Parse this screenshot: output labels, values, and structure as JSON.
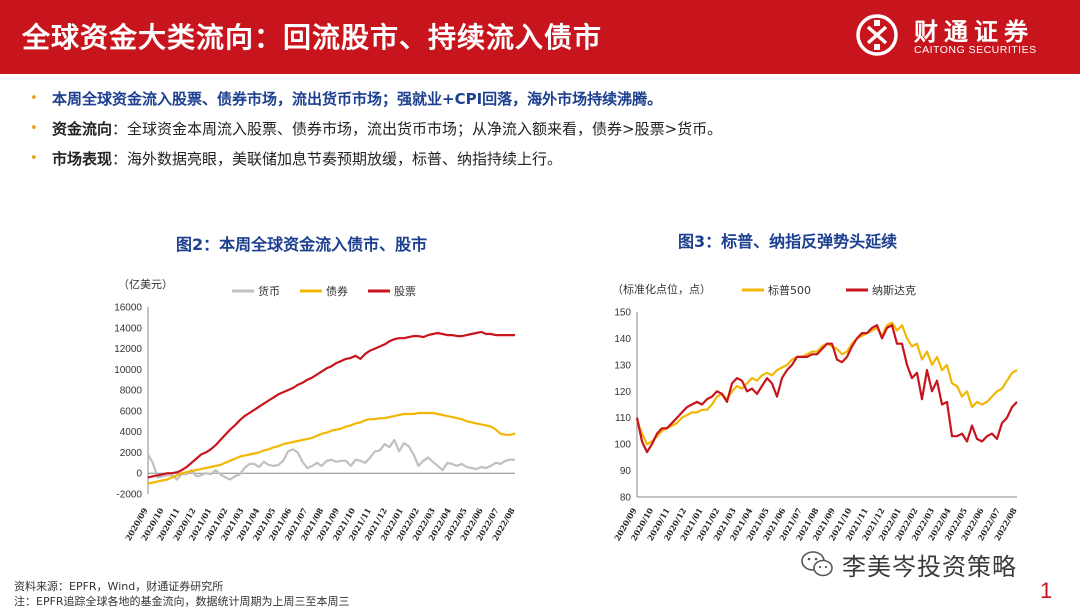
{
  "header": {
    "title": "全球资金大类流向：回流股市、持续流入债市",
    "logo_cn": "财通证券",
    "logo_en": "CAITONG SECURITIES",
    "brand_color": "#c8151d"
  },
  "bullets": [
    {
      "lead": "",
      "text": "本周全球资金流入股票、债券市场，流出货币市场；强就业+CPI回落，海外市场持续沸腾。"
    },
    {
      "lead": "资金流向",
      "text": "：全球资金本周流入股票、债券市场，流出货币市场；从净流入额来看，债券>股票>货币。"
    },
    {
      "lead": "市场表现",
      "text": "：海外数据亮眼，美联储加息节奏预期放缓，标普、纳指持续上行。"
    }
  ],
  "chart_data": [
    {
      "type": "line",
      "title": "图2：本周全球资金流入债市、股市",
      "unit_label": "（亿美元）",
      "ylim": [
        -2000,
        16000
      ],
      "yticks": [
        -2000,
        0,
        2000,
        4000,
        6000,
        8000,
        10000,
        12000,
        14000,
        16000
      ],
      "xticks": [
        "2020/09",
        "2020/10",
        "2020/11",
        "2020/12",
        "2021/01",
        "2021/02",
        "2021/03",
        "2021/04",
        "2021/05",
        "2021/06",
        "2021/07",
        "2021/08",
        "2021/09",
        "2021/10",
        "2021/11",
        "2021/12",
        "2022/01",
        "2022/02",
        "2022/03",
        "2022/04",
        "2022/05",
        "2022/06",
        "2022/07",
        "2022/08"
      ],
      "legend_position": "top",
      "series": [
        {
          "name": "货币",
          "color": "#c0c0c0",
          "values": [
            1800,
            1000,
            -400,
            -300,
            -200,
            -200,
            -600,
            -100,
            -100,
            300,
            -300,
            -200,
            0,
            -100,
            300,
            -100,
            -400,
            -600,
            -300,
            -100,
            500,
            900,
            900,
            600,
            1100,
            800,
            700,
            800,
            1200,
            2100,
            2300,
            2000,
            1100,
            500,
            700,
            1000,
            700,
            1200,
            1300,
            1100,
            1200,
            1200,
            700,
            1300,
            1200,
            1000,
            1500,
            2100,
            2200,
            2800,
            2500,
            3200,
            2100,
            2900,
            2600,
            1800,
            700,
            1200,
            1500,
            1100,
            700,
            300,
            1000,
            900,
            700,
            900,
            600,
            500,
            400,
            600,
            500,
            700,
            1000,
            900,
            1200,
            1300,
            1300
          ]
        },
        {
          "name": "债券",
          "color": "#f2b705",
          "values": [
            -1000,
            -900,
            -800,
            -700,
            -600,
            -400,
            -200,
            0,
            100,
            200,
            300,
            400,
            500,
            600,
            700,
            800,
            1000,
            1200,
            1400,
            1600,
            1700,
            1800,
            1900,
            2000,
            2200,
            2300,
            2500,
            2600,
            2800,
            2900,
            3000,
            3100,
            3200,
            3300,
            3400,
            3600,
            3800,
            3900,
            4100,
            4200,
            4300,
            4500,
            4600,
            4800,
            4900,
            5100,
            5200,
            5200,
            5300,
            5300,
            5400,
            5500,
            5600,
            5700,
            5700,
            5700,
            5800,
            5800,
            5800,
            5800,
            5700,
            5600,
            5500,
            5400,
            5300,
            5200,
            5000,
            4900,
            4800,
            4700,
            4600,
            4500,
            4200,
            3800,
            3700,
            3700,
            3800
          ]
        },
        {
          "name": "股票",
          "color": "#c8151d",
          "values": [
            -400,
            -300,
            -200,
            -100,
            0,
            0,
            100,
            300,
            600,
            1000,
            1400,
            1800,
            2000,
            2300,
            2700,
            3200,
            3700,
            4200,
            4600,
            5100,
            5500,
            5800,
            6100,
            6400,
            6700,
            7000,
            7300,
            7600,
            7800,
            8000,
            8200,
            8500,
            8700,
            9000,
            9200,
            9500,
            9800,
            10100,
            10300,
            10600,
            10800,
            11000,
            11100,
            11300,
            11000,
            11500,
            11800,
            12000,
            12200,
            12400,
            12700,
            12900,
            13000,
            13000,
            13100,
            13200,
            13200,
            13100,
            13300,
            13400,
            13500,
            13400,
            13300,
            13300,
            13200,
            13200,
            13300,
            13400,
            13500,
            13600,
            13400,
            13400,
            13300,
            13300,
            13300,
            13300,
            13300
          ]
        }
      ]
    },
    {
      "type": "line",
      "title": "图3：标普、纳指反弹势头延续",
      "unit_label": "（标准化点位，点）",
      "ylim": [
        80,
        150
      ],
      "yticks": [
        80,
        90,
        100,
        110,
        120,
        130,
        140,
        150
      ],
      "xticks": [
        "2020/09",
        "2020/10",
        "2020/11",
        "2020/12",
        "2021/01",
        "2021/02",
        "2021/03",
        "2021/04",
        "2021/05",
        "2021/06",
        "2021/07",
        "2021/08",
        "2021/09",
        "2021/10",
        "2021/11",
        "2021/12",
        "2022/01",
        "2022/02",
        "2022/03",
        "2022/04",
        "2022/05",
        "2022/06",
        "2022/07",
        "2022/08"
      ],
      "legend_position": "top",
      "series": [
        {
          "name": "标普500",
          "color": "#f2b705",
          "values": [
            109,
            104,
            100,
            101,
            103,
            105,
            106,
            107,
            108,
            110,
            111,
            112,
            112,
            113,
            113,
            115,
            118,
            119,
            117,
            120,
            122,
            121,
            123,
            125,
            124,
            126,
            127,
            126,
            128,
            129,
            130,
            132,
            133,
            133,
            134,
            135,
            135,
            137,
            138,
            137,
            136,
            134,
            135,
            138,
            140,
            141,
            142,
            143,
            144,
            141,
            145,
            146,
            143,
            145,
            140,
            137,
            138,
            132,
            135,
            130,
            133,
            128,
            130,
            123,
            122,
            118,
            120,
            114,
            116,
            115,
            116,
            118,
            120,
            121,
            124,
            127,
            128
          ]
        },
        {
          "name": "纳斯达克",
          "color": "#c8151d",
          "values": [
            110,
            101,
            97,
            100,
            104,
            106,
            106,
            108,
            110,
            112,
            114,
            115,
            116,
            115,
            117,
            118,
            120,
            119,
            116,
            123,
            125,
            124,
            120,
            121,
            119,
            122,
            125,
            123,
            118,
            125,
            128,
            130,
            133,
            133,
            133,
            134,
            134,
            136,
            138,
            138,
            132,
            131,
            133,
            137,
            140,
            142,
            142,
            144,
            145,
            140,
            144,
            145,
            138,
            138,
            130,
            125,
            127,
            117,
            128,
            120,
            124,
            115,
            116,
            103,
            103,
            104,
            101,
            107,
            102,
            101,
            103,
            104,
            102,
            108,
            110,
            114,
            116
          ]
        }
      ]
    }
  ],
  "source": "资料来源：EPFR，Wind，财通证券研究所",
  "note": "注：EPFR追踪全球各地的基金流向，数据统计周期为上周三至本周三",
  "watermark": "李美岑投资策略",
  "page_number": "1"
}
